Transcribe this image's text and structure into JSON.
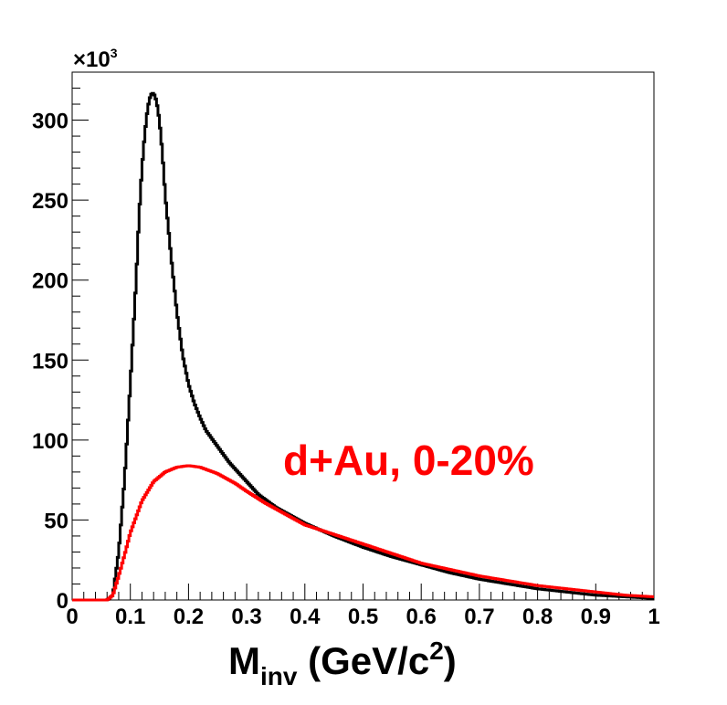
{
  "chart_data": {
    "type": "line",
    "title": "",
    "xlabel_main": "M",
    "xlabel_sub": "inv",
    "xlabel_unit": " (GeV/c",
    "xlabel_unit_sup": "2",
    "xlabel_unit_end": ")",
    "ylabel": "",
    "y_multiplier_prefix": "×10",
    "y_multiplier_exp": "3",
    "xlim": [
      0,
      1
    ],
    "ylim": [
      0,
      330
    ],
    "x_ticks": [
      0,
      0.1,
      0.2,
      0.3,
      0.4,
      0.5,
      0.6,
      0.7,
      0.8,
      0.9,
      1
    ],
    "x_tick_labels": [
      "0",
      "0.1",
      "0.2",
      "0.3",
      "0.4",
      "0.5",
      "0.6",
      "0.7",
      "0.8",
      "0.9",
      "1"
    ],
    "y_ticks": [
      0,
      50,
      100,
      150,
      200,
      250,
      300
    ],
    "y_tick_labels": [
      "0",
      "50",
      "100",
      "150",
      "200",
      "250",
      "300"
    ],
    "annotation": "d+Au, 0-20%",
    "annotation_color": "#ff0000",
    "grid": false,
    "series": [
      {
        "color": "#000000",
        "x": [
          0,
          0.06,
          0.07,
          0.08,
          0.09,
          0.1,
          0.11,
          0.115,
          0.12,
          0.125,
          0.13,
          0.135,
          0.14,
          0.145,
          0.15,
          0.155,
          0.16,
          0.17,
          0.18,
          0.19,
          0.2,
          0.21,
          0.22,
          0.23,
          0.25,
          0.27,
          0.3,
          0.32,
          0.35,
          0.4,
          0.45,
          0.5,
          0.55,
          0.6,
          0.65,
          0.7,
          0.75,
          0.8,
          0.85,
          0.9,
          0.95,
          1.0
        ],
        "y": [
          0,
          0,
          3,
          30,
          75,
          135,
          200,
          240,
          270,
          292,
          308,
          316,
          317,
          312,
          300,
          280,
          253,
          215,
          180,
          153,
          135,
          123,
          114,
          106,
          96,
          86,
          74,
          66,
          58,
          48,
          40,
          33,
          27,
          22,
          17,
          13,
          10,
          7,
          5,
          3,
          2,
          1
        ]
      },
      {
        "color": "#ff0000",
        "x": [
          0,
          0.06,
          0.07,
          0.08,
          0.09,
          0.1,
          0.12,
          0.14,
          0.16,
          0.18,
          0.2,
          0.22,
          0.25,
          0.28,
          0.3,
          0.33,
          0.36,
          0.4,
          0.45,
          0.5,
          0.55,
          0.6,
          0.65,
          0.7,
          0.75,
          0.8,
          0.85,
          0.9,
          0.95,
          1.0
        ],
        "y": [
          0,
          0,
          3,
          15,
          28,
          42,
          62,
          74,
          80,
          83,
          84,
          83,
          79,
          73,
          68,
          61,
          55,
          47,
          41,
          35,
          29,
          23,
          19,
          15,
          12,
          9,
          7,
          5,
          3,
          2
        ]
      }
    ]
  }
}
